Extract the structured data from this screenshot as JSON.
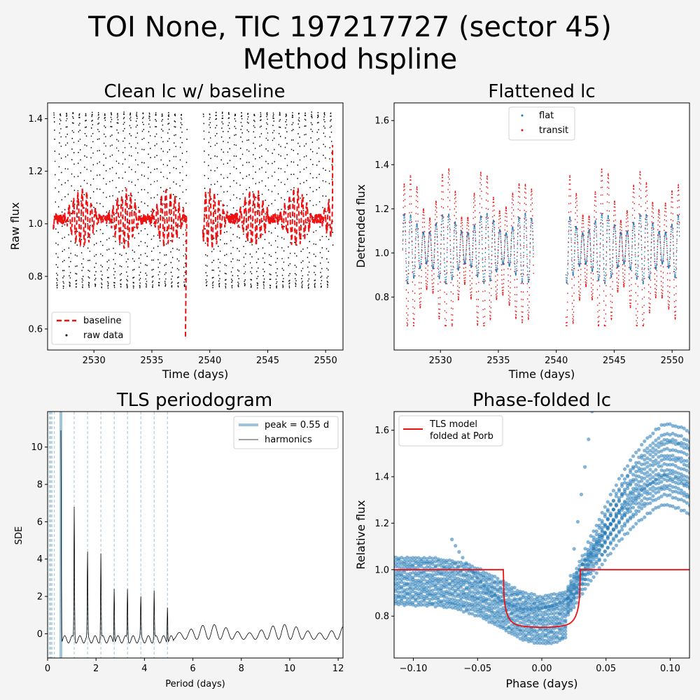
{
  "figure": {
    "title_line1": "TOI None, TIC 197217727 (sector 45)",
    "title_line2": "Method hspline"
  },
  "colors": {
    "black": "#000000",
    "red": "#ee1111",
    "blue": "#1f77b4",
    "lightblue": "#9ec5de"
  },
  "chart_data": [
    {
      "type": "scatter",
      "title": "Clean lc w/ baseline",
      "xlabel": "Time (days)",
      "ylabel": "Raw flux",
      "xlim": [
        2526,
        2551.5
      ],
      "ylim": [
        0.52,
        1.46
      ],
      "xticks": [
        2530,
        2535,
        2540,
        2545,
        2550
      ],
      "yticks": [
        0.6,
        0.8,
        1.0,
        1.2,
        1.4
      ],
      "legend": [
        "baseline",
        "raw data"
      ],
      "legend_loc": "lower-left",
      "series": [
        {
          "name": "raw data",
          "segments": [
            [
              2526.5,
              2538.0
            ],
            [
              2539.4,
              2550.6
            ]
          ],
          "period_days": 0.55,
          "min": 0.76,
          "max": 1.42
        },
        {
          "name": "baseline",
          "mean": 1.02,
          "amplitude": 0.1,
          "end_drop": [
            2537.9,
            0.56
          ],
          "end_rise": [
            2550.6,
            1.3
          ]
        }
      ]
    },
    {
      "type": "scatter",
      "title": "Flattened lc",
      "xlabel": "Time (days)",
      "ylabel": "Detrended flux",
      "xlim": [
        2526,
        2551.5
      ],
      "ylim": [
        0.56,
        1.68
      ],
      "xticks": [
        2530,
        2535,
        2540,
        2545,
        2550
      ],
      "yticks": [
        0.8,
        1.0,
        1.2,
        1.4,
        1.6
      ],
      "legend": [
        "flat",
        "transit"
      ],
      "legend_loc": "upper-center",
      "series": [
        {
          "name": "flat",
          "segments": [
            [
              2526.7,
              2538.0
            ],
            [
              2540.8,
              2550.6
            ]
          ],
          "min": 0.85,
          "max": 1.32
        },
        {
          "name": "transit",
          "segments": [
            [
              2526.7,
              2538.0
            ],
            [
              2540.8,
              2550.6
            ]
          ],
          "min": 0.67,
          "max": 1.58
        }
      ]
    },
    {
      "type": "line",
      "title": "TLS periodogram",
      "xlabel": "Period (days)",
      "ylabel": "SDE",
      "xlim": [
        0,
        12.2
      ],
      "ylim": [
        -1.3,
        11.9
      ],
      "xticks": [
        0,
        2,
        4,
        6,
        8,
        10,
        12
      ],
      "yticks": [
        0,
        2,
        4,
        6,
        8,
        10
      ],
      "legend": [
        "peak = 0.55 d",
        "harmonics"
      ],
      "legend_loc": "upper-right",
      "peak_period": 0.55,
      "harmonics": [
        0.07,
        0.11,
        0.14,
        0.18,
        0.28,
        1.1,
        1.65,
        2.2,
        2.75,
        3.3,
        3.85,
        4.4,
        4.95
      ],
      "peaks": [
        {
          "x": 0.55,
          "y": 11.4
        },
        {
          "x": 1.1,
          "y": 7.1
        },
        {
          "x": 1.65,
          "y": 4.5
        },
        {
          "x": 2.2,
          "y": 4.6
        },
        {
          "x": 2.75,
          "y": 2.9
        },
        {
          "x": 3.3,
          "y": 2.7
        },
        {
          "x": 3.85,
          "y": 2.1
        },
        {
          "x": 4.4,
          "y": 2.6
        },
        {
          "x": 4.95,
          "y": 1.9
        }
      ]
    },
    {
      "type": "scatter",
      "title": "Phase-folded lc",
      "xlabel": "Phase (days)",
      "ylabel": "Relative flux",
      "xlim": [
        -0.115,
        0.115
      ],
      "ylim": [
        0.62,
        1.68
      ],
      "xticks": [
        -0.1,
        -0.05,
        0.0,
        0.05,
        0.1
      ],
      "yticks": [
        0.8,
        1.0,
        1.2,
        1.4,
        1.6
      ],
      "legend": [
        "TLS model\nfolded at Porb"
      ],
      "legend_loc": "upper-left",
      "model": {
        "baseline": 1.0,
        "depth_min": 0.752,
        "t_start": -0.03,
        "t_end": 0.03
      }
    }
  ]
}
